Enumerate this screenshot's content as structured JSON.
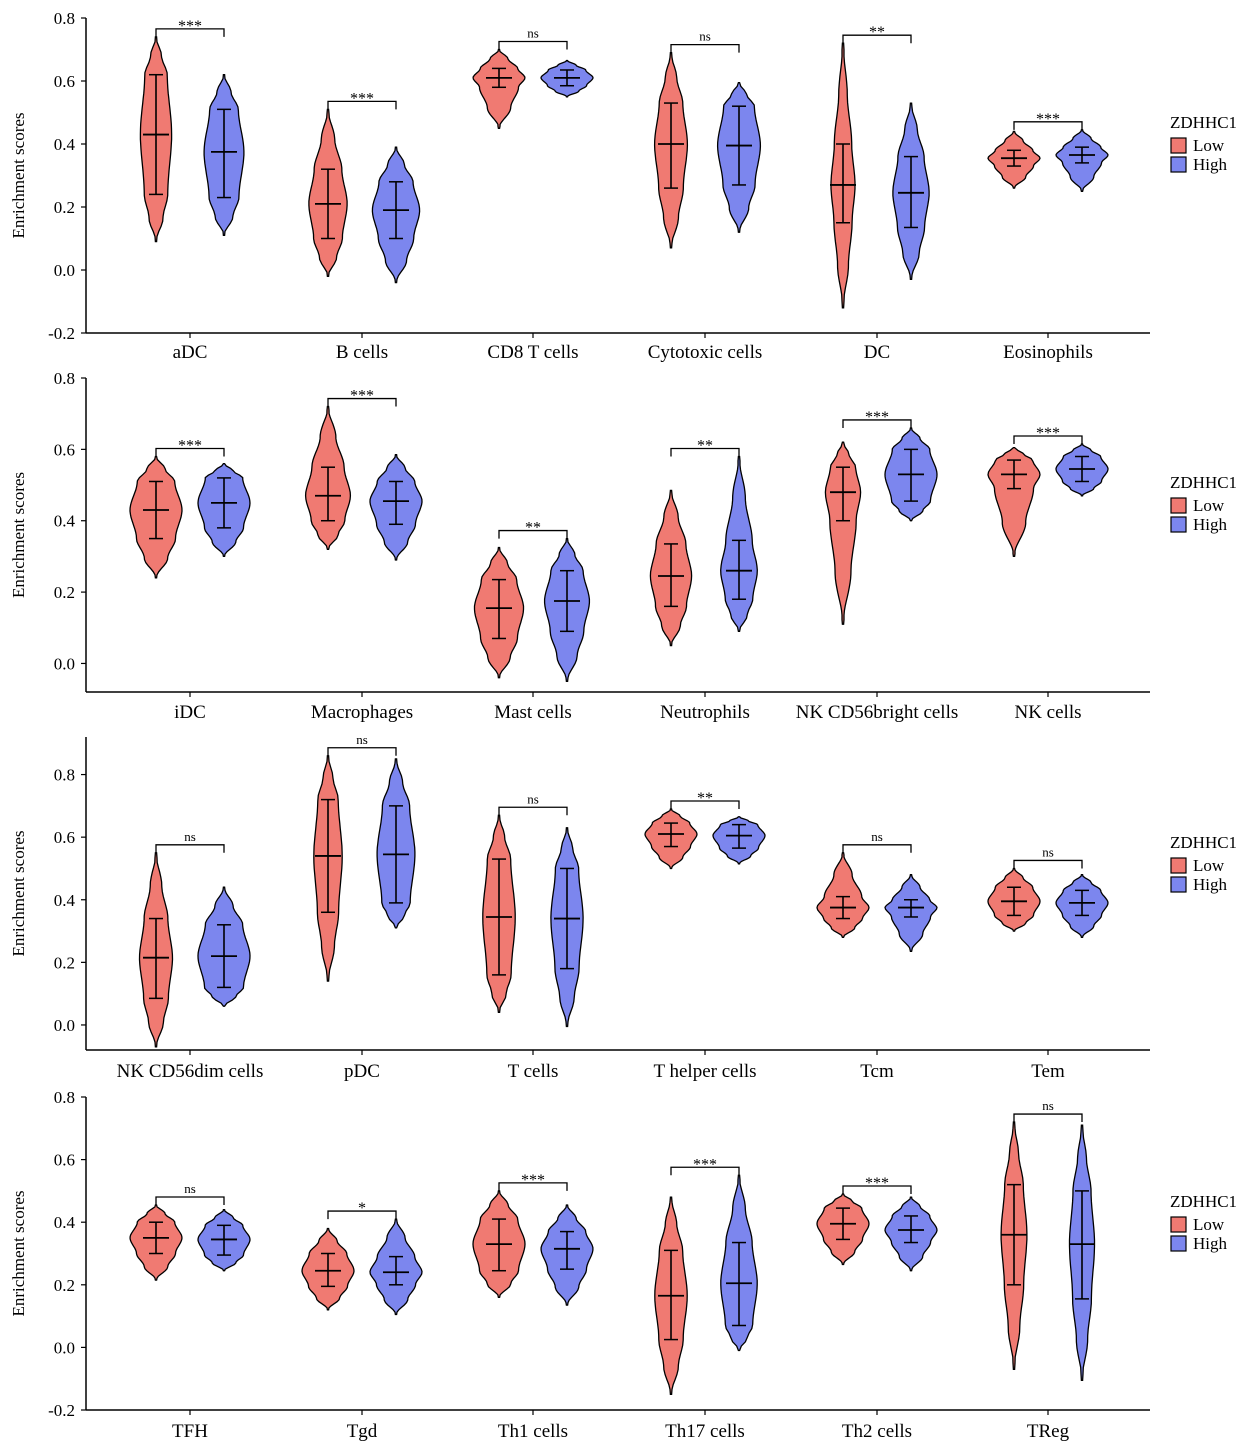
{
  "legend": {
    "title": "ZDHHC1",
    "items": [
      {
        "label": "Low",
        "color": "#F07A72"
      },
      {
        "label": "High",
        "color": "#7C86EE"
      }
    ]
  },
  "chart_data": [
    {
      "type": "violin",
      "ylabel": "Enrichment scores",
      "ylim": [
        -0.2,
        0.8
      ],
      "yticks": [
        "-0.2",
        "0.0",
        "0.2",
        "0.4",
        "0.6",
        "0.8"
      ],
      "legend_position": "right",
      "categories": [
        "aDC",
        "B cells",
        "CD8 T cells",
        "Cytotoxic cells",
        "DC",
        "Eosinophils"
      ],
      "significance": [
        "***",
        "***",
        "ns",
        "ns",
        "**",
        "***"
      ],
      "series": [
        {
          "name": "Low",
          "median": [
            0.43,
            0.21,
            0.61,
            0.4,
            0.27,
            0.355
          ],
          "q1": [
            0.24,
            0.1,
            0.58,
            0.26,
            0.15,
            0.33
          ],
          "q3": [
            0.62,
            0.32,
            0.64,
            0.53,
            0.4,
            0.38
          ],
          "min": [
            0.09,
            -0.02,
            0.45,
            0.07,
            -0.12,
            0.26
          ],
          "max": [
            0.74,
            0.51,
            0.7,
            0.69,
            0.72,
            0.44
          ]
        },
        {
          "name": "High",
          "median": [
            0.375,
            0.19,
            0.61,
            0.395,
            0.245,
            0.365
          ],
          "q1": [
            0.23,
            0.1,
            0.585,
            0.27,
            0.135,
            0.34
          ],
          "q3": [
            0.51,
            0.28,
            0.635,
            0.52,
            0.36,
            0.39
          ],
          "min": [
            0.11,
            -0.04,
            0.55,
            0.12,
            -0.03,
            0.25
          ],
          "max": [
            0.62,
            0.39,
            0.665,
            0.595,
            0.53,
            0.445
          ]
        }
      ]
    },
    {
      "type": "violin",
      "ylabel": "Enrichment scores",
      "ylim": [
        -0.08,
        0.8
      ],
      "yticks": [
        "0.0",
        "0.2",
        "0.4",
        "0.6",
        "0.8"
      ],
      "legend_position": "right",
      "categories": [
        "iDC",
        "Macrophages",
        "Mast cells",
        "Neutrophils",
        "NK CD56bright cells",
        "NK cells"
      ],
      "significance": [
        "***",
        "***",
        "**",
        "**",
        "***",
        "***"
      ],
      "series": [
        {
          "name": "Low",
          "median": [
            0.43,
            0.47,
            0.155,
            0.245,
            0.48,
            0.53
          ],
          "q1": [
            0.35,
            0.4,
            0.07,
            0.16,
            0.4,
            0.49
          ],
          "q3": [
            0.51,
            0.55,
            0.235,
            0.335,
            0.55,
            0.57
          ],
          "min": [
            0.24,
            0.32,
            -0.04,
            0.05,
            0.11,
            0.3
          ],
          "max": [
            0.58,
            0.72,
            0.325,
            0.485,
            0.62,
            0.605
          ]
        },
        {
          "name": "High",
          "median": [
            0.45,
            0.455,
            0.175,
            0.26,
            0.53,
            0.545
          ],
          "q1": [
            0.38,
            0.39,
            0.09,
            0.18,
            0.455,
            0.51
          ],
          "q3": [
            0.52,
            0.51,
            0.26,
            0.345,
            0.6,
            0.58
          ],
          "min": [
            0.3,
            0.29,
            -0.05,
            0.09,
            0.4,
            0.47
          ],
          "max": [
            0.56,
            0.585,
            0.35,
            0.58,
            0.66,
            0.615
          ]
        }
      ]
    },
    {
      "type": "violin",
      "ylabel": "Enrichment scores",
      "ylim": [
        -0.08,
        0.92
      ],
      "yticks": [
        "0.0",
        "0.2",
        "0.4",
        "0.6",
        "0.8"
      ],
      "legend_position": "right",
      "categories": [
        "NK CD56dim cells",
        "pDC",
        "T cells",
        "T helper cells",
        "Tcm",
        "Tem"
      ],
      "significance": [
        "ns",
        "ns",
        "ns",
        "**",
        "ns",
        "ns"
      ],
      "series": [
        {
          "name": "Low",
          "median": [
            0.215,
            0.54,
            0.345,
            0.61,
            0.375,
            0.395
          ],
          "q1": [
            0.085,
            0.36,
            0.16,
            0.57,
            0.34,
            0.35
          ],
          "q3": [
            0.34,
            0.72,
            0.53,
            0.645,
            0.41,
            0.44
          ],
          "min": [
            -0.07,
            0.14,
            0.04,
            0.5,
            0.28,
            0.3
          ],
          "max": [
            0.55,
            0.86,
            0.67,
            0.69,
            0.55,
            0.5
          ]
        },
        {
          "name": "High",
          "median": [
            0.22,
            0.545,
            0.34,
            0.605,
            0.375,
            0.39
          ],
          "q1": [
            0.12,
            0.39,
            0.18,
            0.565,
            0.345,
            0.35
          ],
          "q3": [
            0.32,
            0.7,
            0.5,
            0.64,
            0.4,
            0.43
          ],
          "min": [
            0.06,
            0.31,
            -0.005,
            0.515,
            0.235,
            0.28
          ],
          "max": [
            0.44,
            0.85,
            0.63,
            0.665,
            0.48,
            0.48
          ]
        }
      ]
    },
    {
      "type": "violin",
      "ylabel": "Enrichment scores",
      "ylim": [
        -0.2,
        0.8
      ],
      "yticks": [
        "-0.2",
        "0.0",
        "0.2",
        "0.4",
        "0.6",
        "0.8"
      ],
      "legend_position": "right",
      "categories": [
        "TFH",
        "Tgd",
        "Th1 cells",
        "Th17 cells",
        "Th2 cells",
        "TReg"
      ],
      "significance": [
        "ns",
        "*",
        "***",
        "***",
        "***",
        "ns"
      ],
      "series": [
        {
          "name": "Low",
          "median": [
            0.35,
            0.245,
            0.33,
            0.165,
            0.395,
            0.36
          ],
          "q1": [
            0.3,
            0.195,
            0.245,
            0.025,
            0.345,
            0.2
          ],
          "q3": [
            0.4,
            0.3,
            0.41,
            0.31,
            0.445,
            0.52
          ],
          "min": [
            0.215,
            0.12,
            0.16,
            -0.15,
            0.265,
            -0.07
          ],
          "max": [
            0.455,
            0.38,
            0.5,
            0.48,
            0.49,
            0.72
          ]
        },
        {
          "name": "High",
          "median": [
            0.345,
            0.24,
            0.315,
            0.205,
            0.375,
            0.33
          ],
          "q1": [
            0.295,
            0.2,
            0.25,
            0.07,
            0.335,
            0.155
          ],
          "q3": [
            0.39,
            0.29,
            0.37,
            0.335,
            0.42,
            0.5
          ],
          "min": [
            0.245,
            0.105,
            0.135,
            -0.01,
            0.245,
            -0.105
          ],
          "max": [
            0.44,
            0.41,
            0.455,
            0.55,
            0.48,
            0.71
          ]
        }
      ]
    }
  ]
}
